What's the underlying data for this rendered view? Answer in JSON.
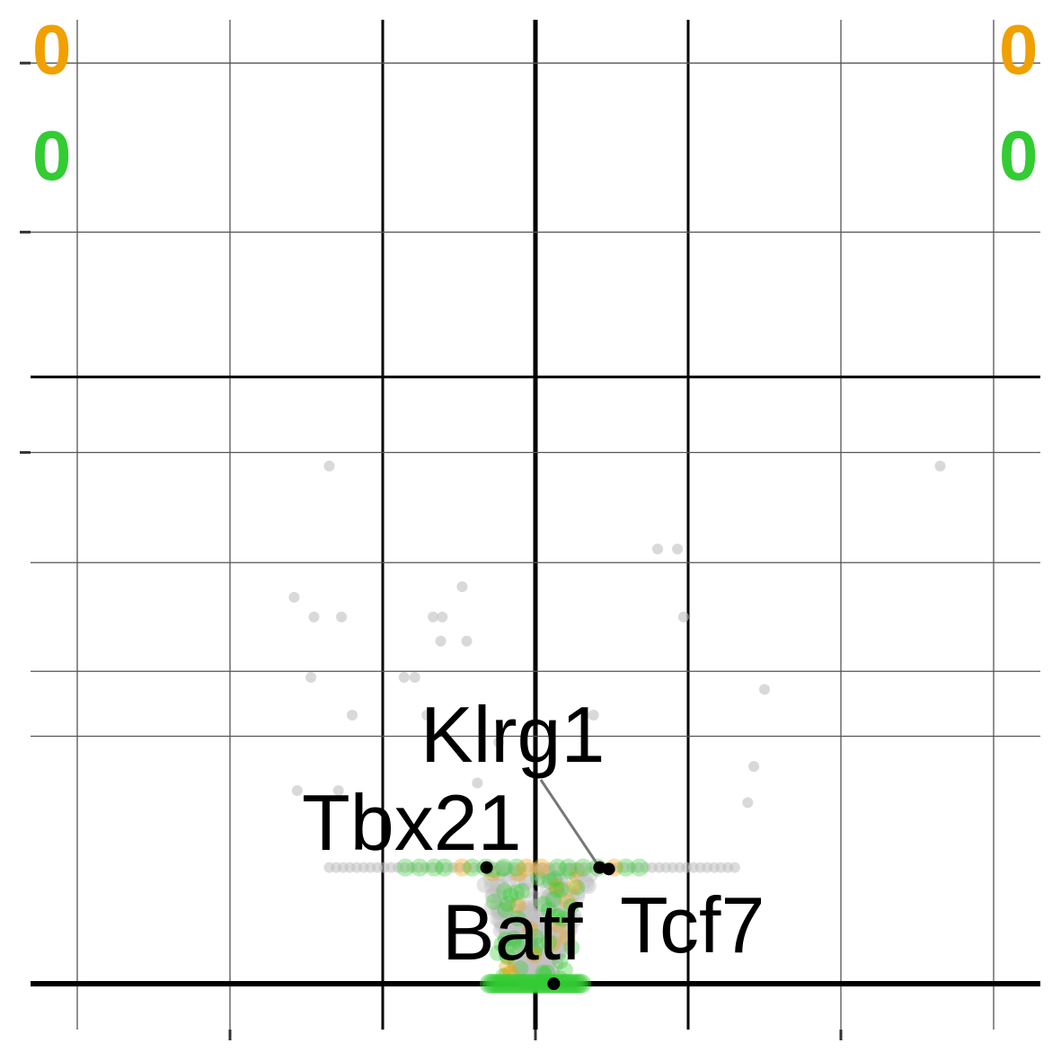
{
  "chart_data": {
    "type": "scatter",
    "title": "",
    "xlabel": "",
    "ylabel": "",
    "grid": true,
    "x_range": [
      -3.0,
      3.3
    ],
    "y_range": [
      0,
      6
    ],
    "counts": {
      "orange": {
        "left": "0",
        "right": "0",
        "color": "#f0a000"
      },
      "green": {
        "left": "0",
        "right": "0",
        "color": "#33cc33"
      }
    },
    "colors": {
      "background_points": "#c0c0c0",
      "highlight_points": "#33cc33",
      "highlight_points_alt": "#f0a000",
      "labeled_points": "#000000"
    },
    "labeled_genes": [
      {
        "name": "Klrg1",
        "x": 0.42,
        "y": 0.77
      },
      {
        "name": "Tbx21",
        "x": -0.32,
        "y": 0.77
      },
      {
        "name": "Tcf7",
        "x": 0.48,
        "y": 0.76
      },
      {
        "name": "Batf",
        "x": 0.12,
        "y": 0.0
      }
    ],
    "points": [
      {
        "x": -1.35,
        "y": 3.43
      },
      {
        "x": 2.65,
        "y": 3.43
      },
      {
        "x": 0.8,
        "y": 2.88
      },
      {
        "x": 0.93,
        "y": 2.88
      },
      {
        "x": -1.58,
        "y": 2.56
      },
      {
        "x": -0.48,
        "y": 2.63
      },
      {
        "x": -1.45,
        "y": 2.43
      },
      {
        "x": -1.27,
        "y": 2.43
      },
      {
        "x": -0.67,
        "y": 2.43
      },
      {
        "x": -0.61,
        "y": 2.43
      },
      {
        "x": 0.97,
        "y": 2.43
      },
      {
        "x": -0.62,
        "y": 2.27
      },
      {
        "x": -0.45,
        "y": 2.27
      },
      {
        "x": -1.47,
        "y": 2.03
      },
      {
        "x": -0.86,
        "y": 2.03
      },
      {
        "x": -0.79,
        "y": 2.03
      },
      {
        "x": 1.5,
        "y": 1.95
      },
      {
        "x": 0.38,
        "y": 1.78
      },
      {
        "x": -1.2,
        "y": 1.78
      },
      {
        "x": -0.24,
        "y": 1.6
      },
      {
        "x": 1.43,
        "y": 1.44
      },
      {
        "x": -0.38,
        "y": 1.33
      },
      {
        "x": -1.56,
        "y": 1.28
      },
      {
        "x": -1.29,
        "y": 1.28
      },
      {
        "x": 1.39,
        "y": 1.2
      },
      {
        "x": -0.71,
        "y": 1.78
      }
    ],
    "band": {
      "x_min": -1.35,
      "x_max": 1.32,
      "y": 0.77
    },
    "cluster": {
      "x_min": -0.35,
      "x_max": 0.35,
      "y_min": 0.0,
      "y_max": 0.77
    }
  }
}
